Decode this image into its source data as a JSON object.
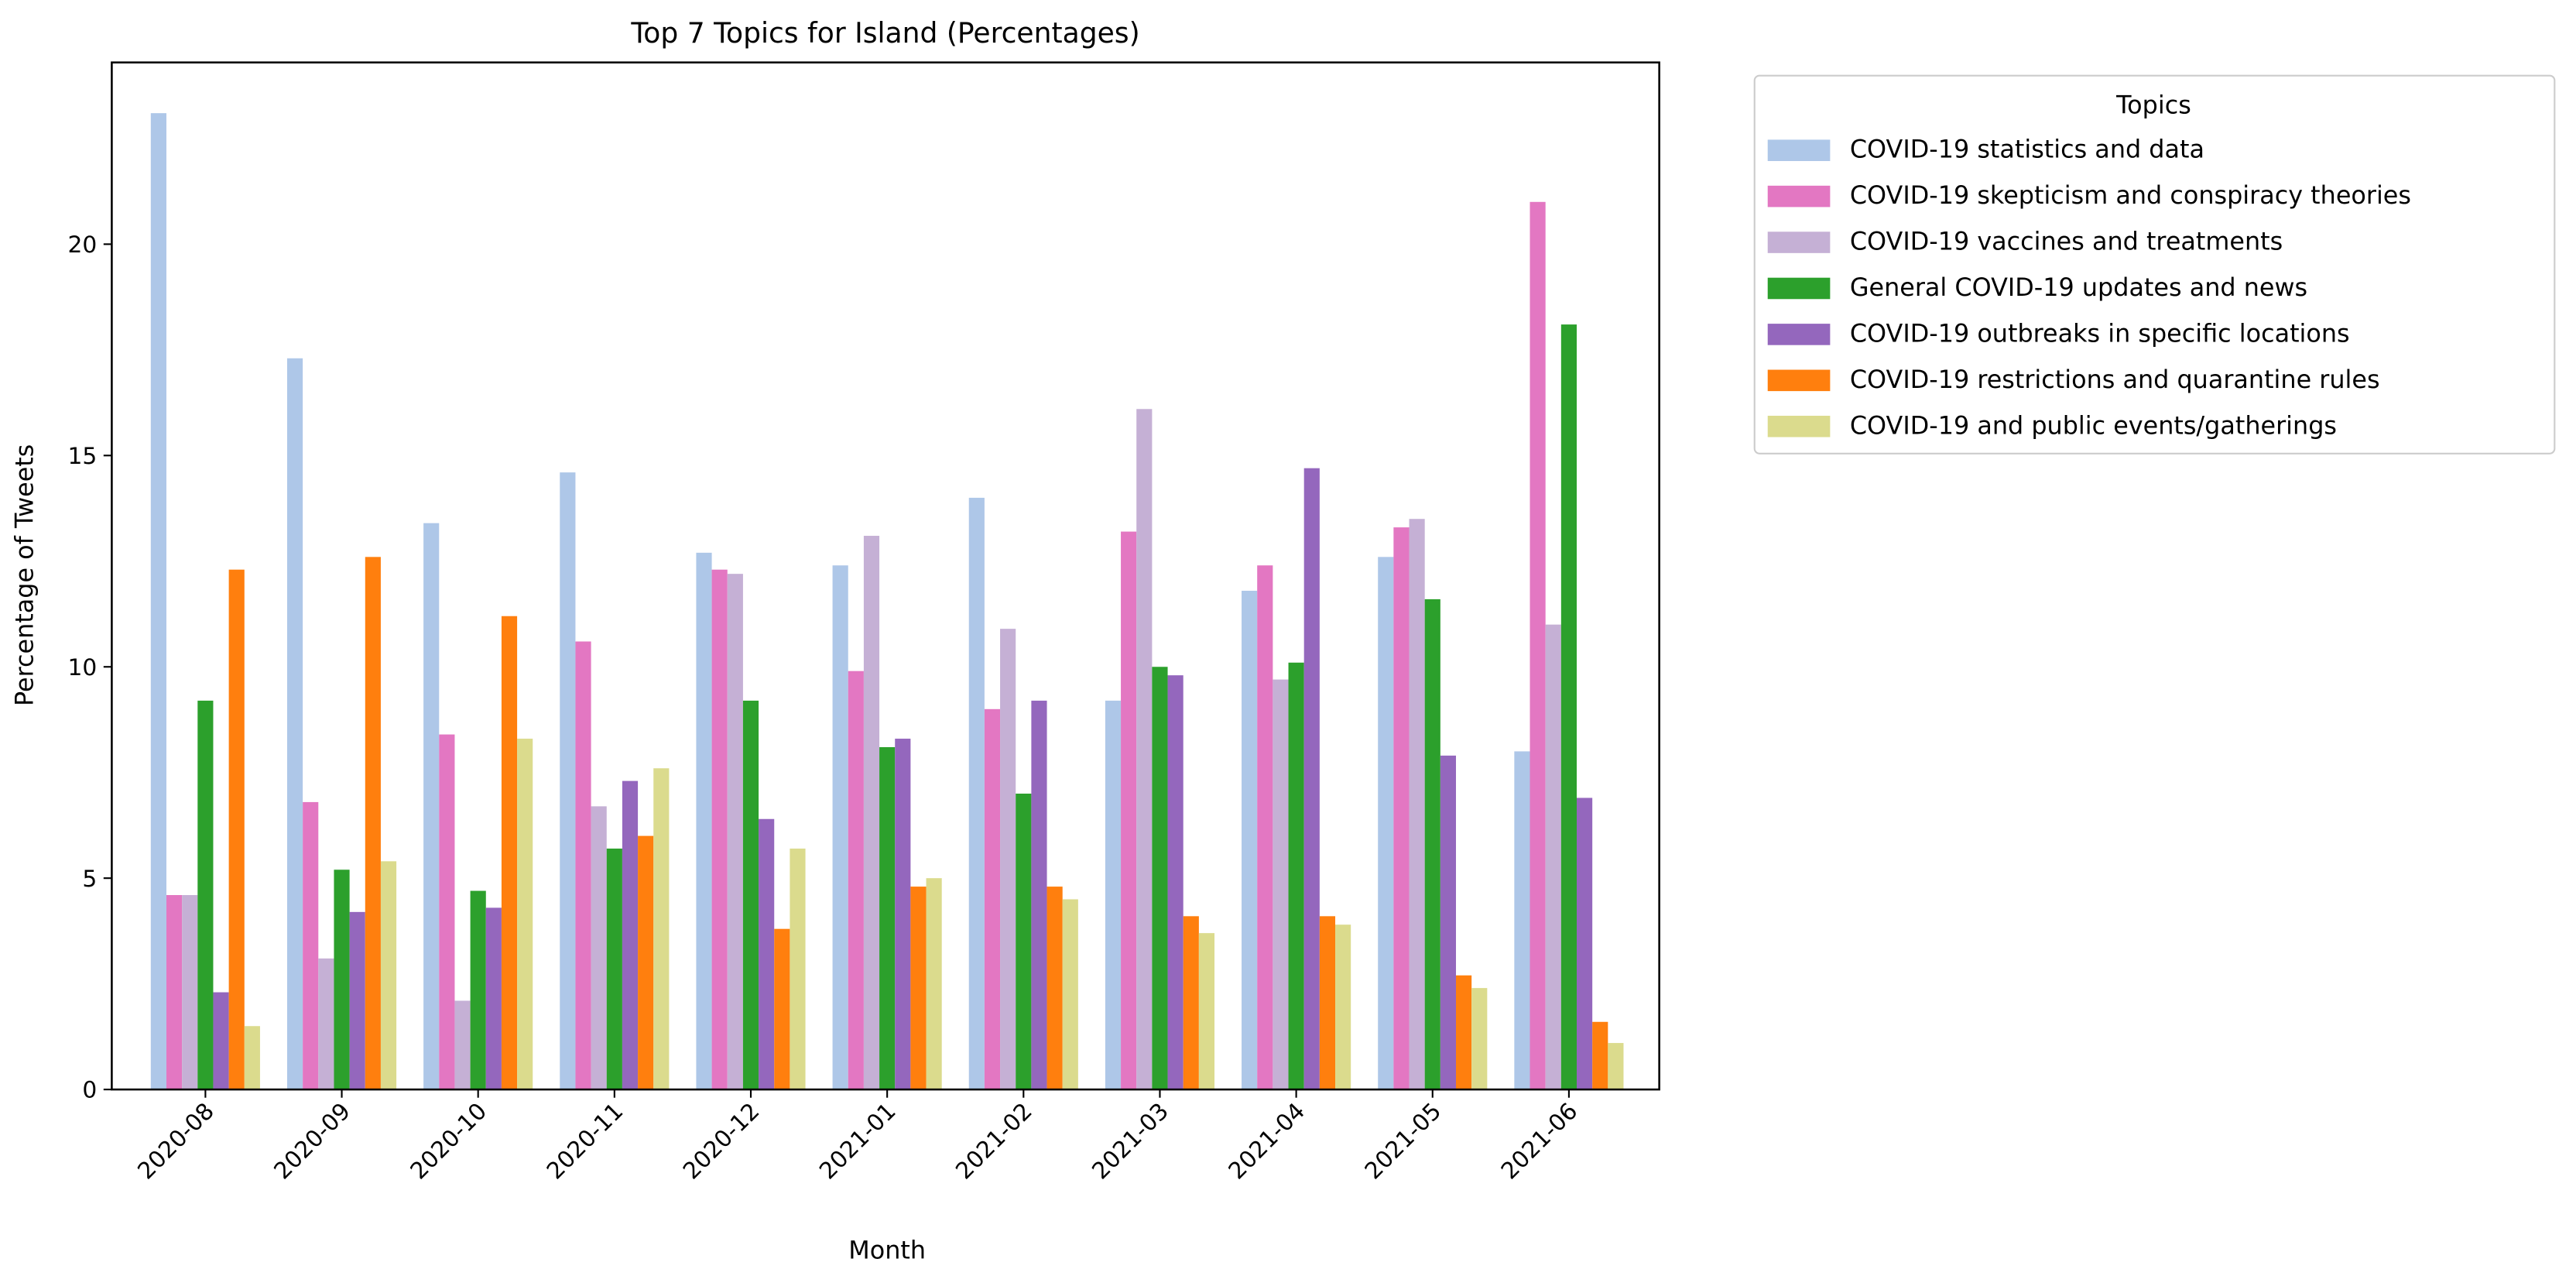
{
  "chart_data": {
    "type": "bar",
    "title": "Top 7 Topics for Island (Percentages)",
    "x_label": "Month",
    "y_label": "Percentage of Tweets",
    "legend_title": "Topics",
    "legend_position": "outside right",
    "categories": [
      "2020-08",
      "2020-09",
      "2020-10",
      "2020-11",
      "2020-12",
      "2021-01",
      "2021-02",
      "2021-03",
      "2021-04",
      "2021-05",
      "2021-06"
    ],
    "series": [
      {
        "name": "COVID-19 statistics and data",
        "color": "#aec7e8",
        "values": [
          23.1,
          17.3,
          13.4,
          14.6,
          12.7,
          12.4,
          14.0,
          9.2,
          11.8,
          12.6,
          8.0
        ]
      },
      {
        "name": "COVID-19 skepticism and conspiracy theories",
        "color": "#e377c2",
        "values": [
          4.6,
          6.8,
          8.4,
          10.6,
          12.3,
          9.9,
          9.0,
          13.2,
          12.4,
          13.3,
          21.0
        ]
      },
      {
        "name": "COVID-19 vaccines and treatments",
        "color": "#c5b0d5",
        "values": [
          4.6,
          3.1,
          2.1,
          6.7,
          12.2,
          13.1,
          10.9,
          16.1,
          9.7,
          13.5,
          11.0
        ]
      },
      {
        "name": "General COVID-19 updates and news",
        "color": "#2ca02c",
        "values": [
          9.2,
          5.2,
          4.7,
          5.7,
          9.2,
          8.1,
          7.0,
          10.0,
          10.1,
          11.6,
          18.1
        ]
      },
      {
        "name": "COVID-19 outbreaks in specific locations",
        "color": "#9467bd",
        "values": [
          2.3,
          4.2,
          4.3,
          7.3,
          6.4,
          8.3,
          9.2,
          9.8,
          14.7,
          7.9,
          6.9
        ]
      },
      {
        "name": "COVID-19 restrictions and quarantine rules",
        "color": "#ff7f0e",
        "values": [
          12.3,
          12.6,
          11.2,
          6.0,
          3.8,
          4.8,
          4.8,
          4.1,
          4.1,
          2.7,
          1.6
        ]
      },
      {
        "name": "COVID-19 and public events/gatherings",
        "color": "#dbdb8d",
        "values": [
          1.5,
          5.4,
          8.3,
          7.6,
          5.7,
          5.0,
          4.5,
          3.7,
          3.9,
          2.4,
          1.1
        ]
      }
    ],
    "ylim": [
      0,
      24.3
    ],
    "yticks": [
      0,
      5,
      10,
      15,
      20
    ],
    "grid": false
  }
}
